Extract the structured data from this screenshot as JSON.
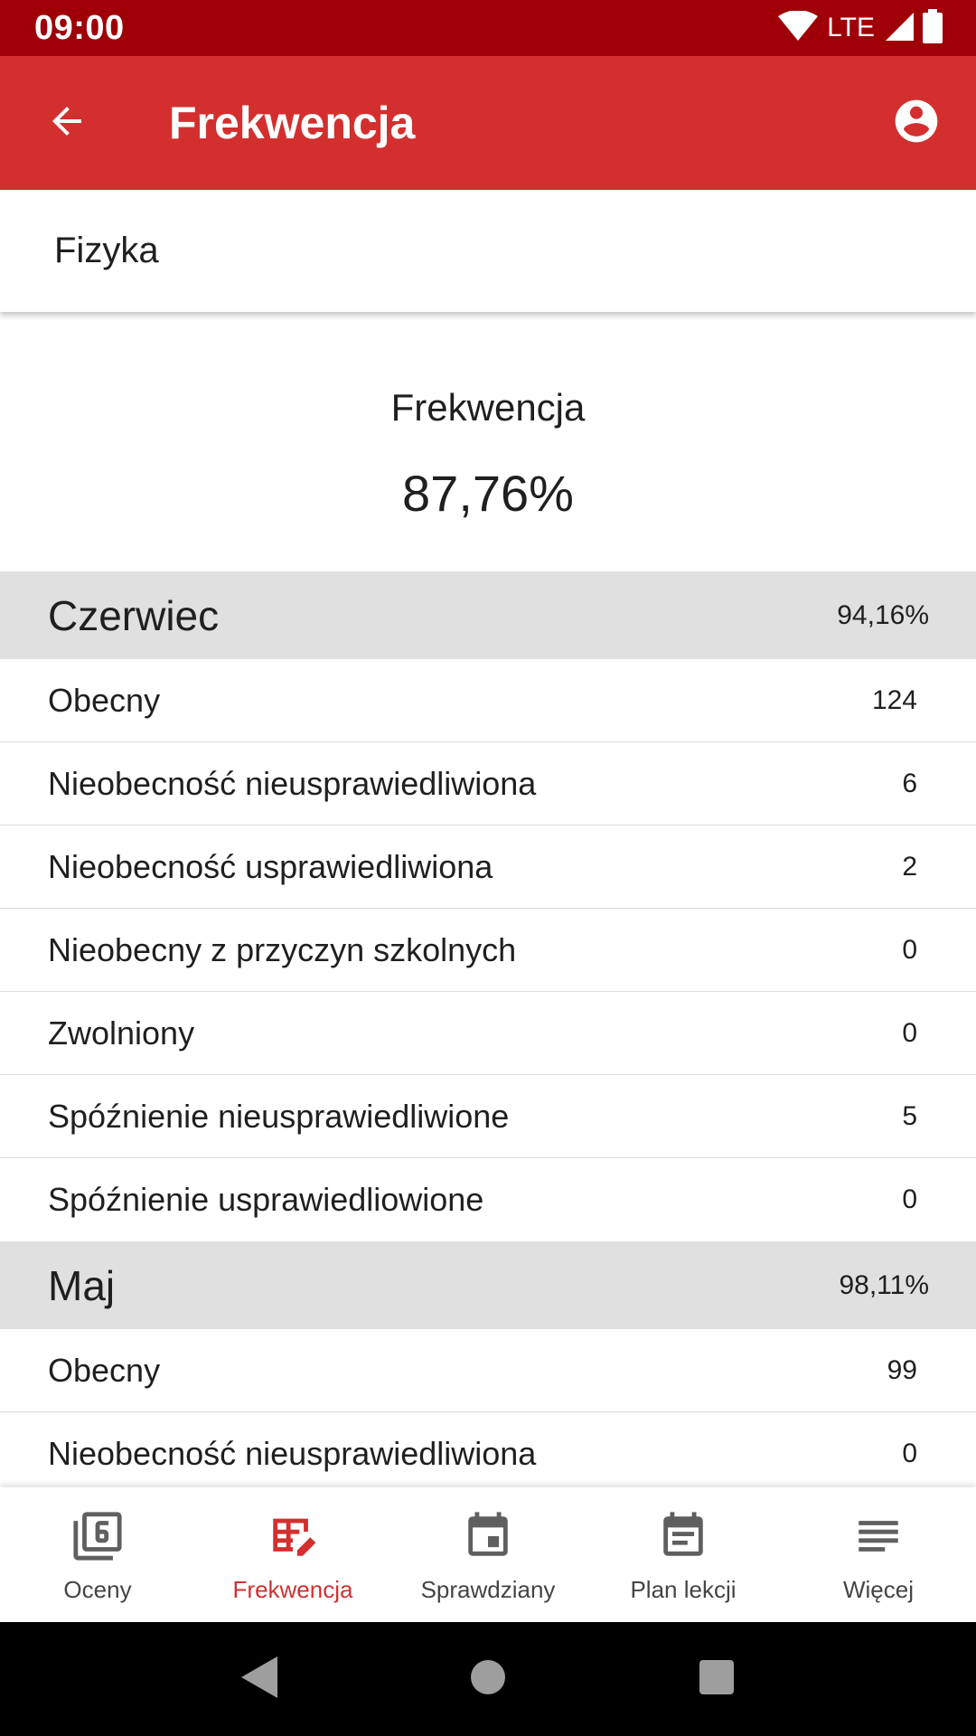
{
  "status_bar": {
    "time": "09:00",
    "network": "LTE"
  },
  "app_bar": {
    "title": "Frekwencja",
    "icons": [
      "arrow-back-icon",
      "account-circle-icon"
    ]
  },
  "subject": {
    "name": "Fizyka"
  },
  "summary": {
    "label": "Frekwencja",
    "value": "87,76%"
  },
  "months": [
    {
      "name": "Czerwiec",
      "percent": "94,16%",
      "rows": [
        {
          "label": "Obecny",
          "value": "124"
        },
        {
          "label": "Nieobecność nieusprawiedliwiona",
          "value": "6"
        },
        {
          "label": "Nieobecność usprawiedliwiona",
          "value": "2"
        },
        {
          "label": "Nieobecny z przyczyn szkolnych",
          "value": "0"
        },
        {
          "label": "Zwolniony",
          "value": "0"
        },
        {
          "label": "Spóźnienie nieusprawiedliwione",
          "value": "5"
        },
        {
          "label": "Spóźnienie usprawiedliowione",
          "value": "0"
        }
      ]
    },
    {
      "name": "Maj",
      "percent": "98,11%",
      "rows": [
        {
          "label": "Obecny",
          "value": "99"
        },
        {
          "label": "Nieobecność nieusprawiedliwiona",
          "value": "0"
        }
      ]
    }
  ],
  "bottom_nav": {
    "items": [
      {
        "label": "Oceny",
        "icon": "grades-icon",
        "active": false
      },
      {
        "label": "Frekwencja",
        "icon": "attendance-icon",
        "active": true
      },
      {
        "label": "Sprawdziany",
        "icon": "calendar-event-icon",
        "active": false
      },
      {
        "label": "Plan lekcji",
        "icon": "timetable-icon",
        "active": false
      },
      {
        "label": "Więcej",
        "icon": "more-menu-icon",
        "active": false
      }
    ]
  },
  "colors": {
    "status_bar": "#9f0008",
    "app_bar": "#d32f2f",
    "accent": "#d32f2f",
    "month_header_bg": "#e0e0e0"
  }
}
